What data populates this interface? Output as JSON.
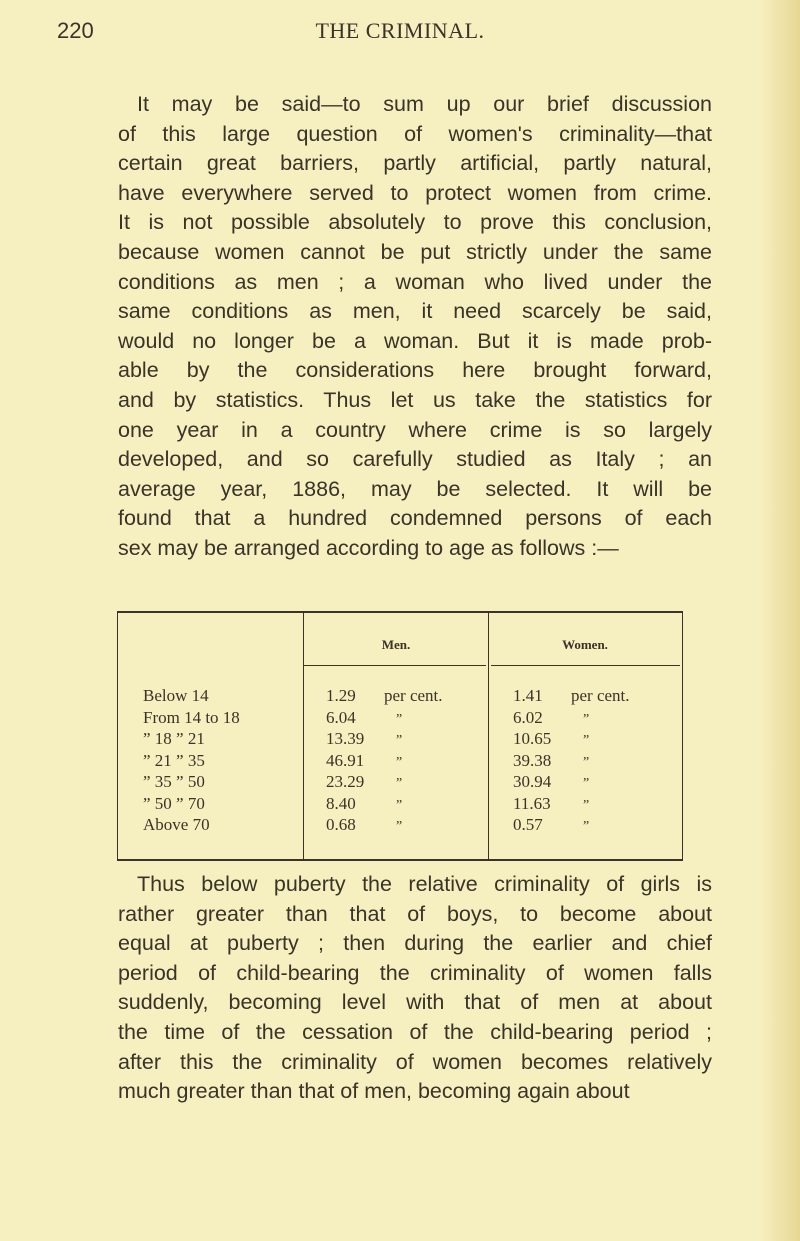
{
  "header": {
    "page_number": "220",
    "running_title": "THE CRIMINAL."
  },
  "paragraph1": [
    "It may be said—to sum up our brief discussion",
    "of this large question of women's criminality—that",
    "certain great barriers, partly artificial, partly natural,",
    "have everywhere served to protect women from crime.",
    "It is not possible absolutely to prove this conclusion,",
    "because women cannot be put strictly under the same",
    "conditions as men ; a woman who lived under the",
    "same conditions as men, it need scarcely be said,",
    "would no longer be a woman. But it is made prob-",
    "able by the considerations here brought forward,",
    "and by statistics. Thus let us take the statistics for",
    "one year in a country where crime is so largely",
    "developed, and so carefully studied as Italy ; an",
    "average year, 1886, may be selected. It will be",
    "found that a hundred condemned persons of each",
    "sex may be arranged according to age as follows :—"
  ],
  "table": {
    "headers": [
      "",
      "Men.",
      "Women."
    ],
    "unit": "per cent.",
    "ditto": "”",
    "rows": [
      {
        "age": "Below 14",
        "men": "1.29",
        "women": "1.41"
      },
      {
        "age": "From 14 to 18",
        "men": "6.04",
        "women": "6.02"
      },
      {
        "age": "” 18 ” 21",
        "men": "13.39",
        "women": "10.65"
      },
      {
        "age": "” 21 ” 35",
        "men": "46.91",
        "women": "39.38"
      },
      {
        "age": "” 35 ” 50",
        "men": "23.29",
        "women": "30.94"
      },
      {
        "age": "” 50 ” 70",
        "men": "8.40",
        "women": "11.63"
      },
      {
        "age": "Above 70",
        "men": "0.68",
        "women": "0.57"
      }
    ]
  },
  "paragraph2": [
    "Thus below puberty the relative criminality of girls is",
    "rather greater than that of boys, to become about",
    "equal at puberty ; then during the earlier and chief",
    "period of child-bearing the criminality of women falls",
    "suddenly, becoming level with that of men at about",
    "the time of the cessation of the child-bearing period ;",
    "after this the criminality of women becomes relatively",
    "much greater than that of men, becoming again about"
  ]
}
